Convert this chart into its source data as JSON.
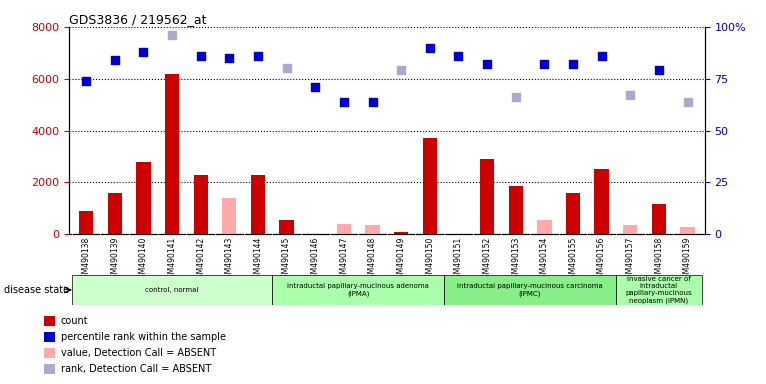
{
  "title": "GDS3836 / 219562_at",
  "samples": [
    "GSM490138",
    "GSM490139",
    "GSM490140",
    "GSM490141",
    "GSM490142",
    "GSM490143",
    "GSM490144",
    "GSM490145",
    "GSM490146",
    "GSM490147",
    "GSM490148",
    "GSM490149",
    "GSM490150",
    "GSM490151",
    "GSM490152",
    "GSM490153",
    "GSM490154",
    "GSM490155",
    "GSM490156",
    "GSM490157",
    "GSM490158",
    "GSM490159"
  ],
  "count": [
    900,
    1600,
    2800,
    6200,
    2300,
    null,
    2300,
    550,
    null,
    null,
    null,
    100,
    3700,
    null,
    2900,
    1850,
    null,
    1600,
    2500,
    null,
    1150,
    null
  ],
  "count_absent": [
    null,
    null,
    null,
    null,
    null,
    1400,
    null,
    null,
    null,
    380,
    350,
    null,
    null,
    null,
    null,
    null,
    550,
    null,
    null,
    350,
    null,
    280
  ],
  "rank": [
    74,
    84,
    88,
    null,
    86,
    85,
    86,
    null,
    71,
    64,
    64,
    null,
    90,
    86,
    82,
    null,
    82,
    82,
    86,
    null,
    79,
    null
  ],
  "rank_absent": [
    null,
    null,
    null,
    96,
    null,
    null,
    null,
    80,
    null,
    null,
    null,
    79,
    null,
    null,
    null,
    66,
    null,
    null,
    null,
    67,
    null,
    64
  ],
  "ylim_left": [
    0,
    8000
  ],
  "ylim_right": [
    0,
    100
  ],
  "yticks_left": [
    0,
    2000,
    4000,
    6000,
    8000
  ],
  "yticks_right": [
    0,
    25,
    50,
    75,
    100
  ],
  "disease_groups": [
    {
      "label": "control, normal",
      "start": 0,
      "end": 7,
      "color": "#ccffcc"
    },
    {
      "label": "intraductal papillary-mucinous adenoma\n(IPMA)",
      "start": 7,
      "end": 13,
      "color": "#aaffaa"
    },
    {
      "label": "intraductal papillary-mucinous carcinoma\n(IPMC)",
      "start": 13,
      "end": 19,
      "color": "#aaffaa"
    },
    {
      "label": "invasive cancer of\nintraductal\npapillary-mucinous\nneoplasm (IPMN)",
      "start": 19,
      "end": 22,
      "color": "#aaffaa"
    }
  ],
  "bar_color_count": "#cc0000",
  "bar_color_count_absent": "#ffaaaa",
  "dot_color_rank": "#0000cc",
  "dot_color_rank_absent": "#aaaacc",
  "plot_bg": "#ffffff"
}
